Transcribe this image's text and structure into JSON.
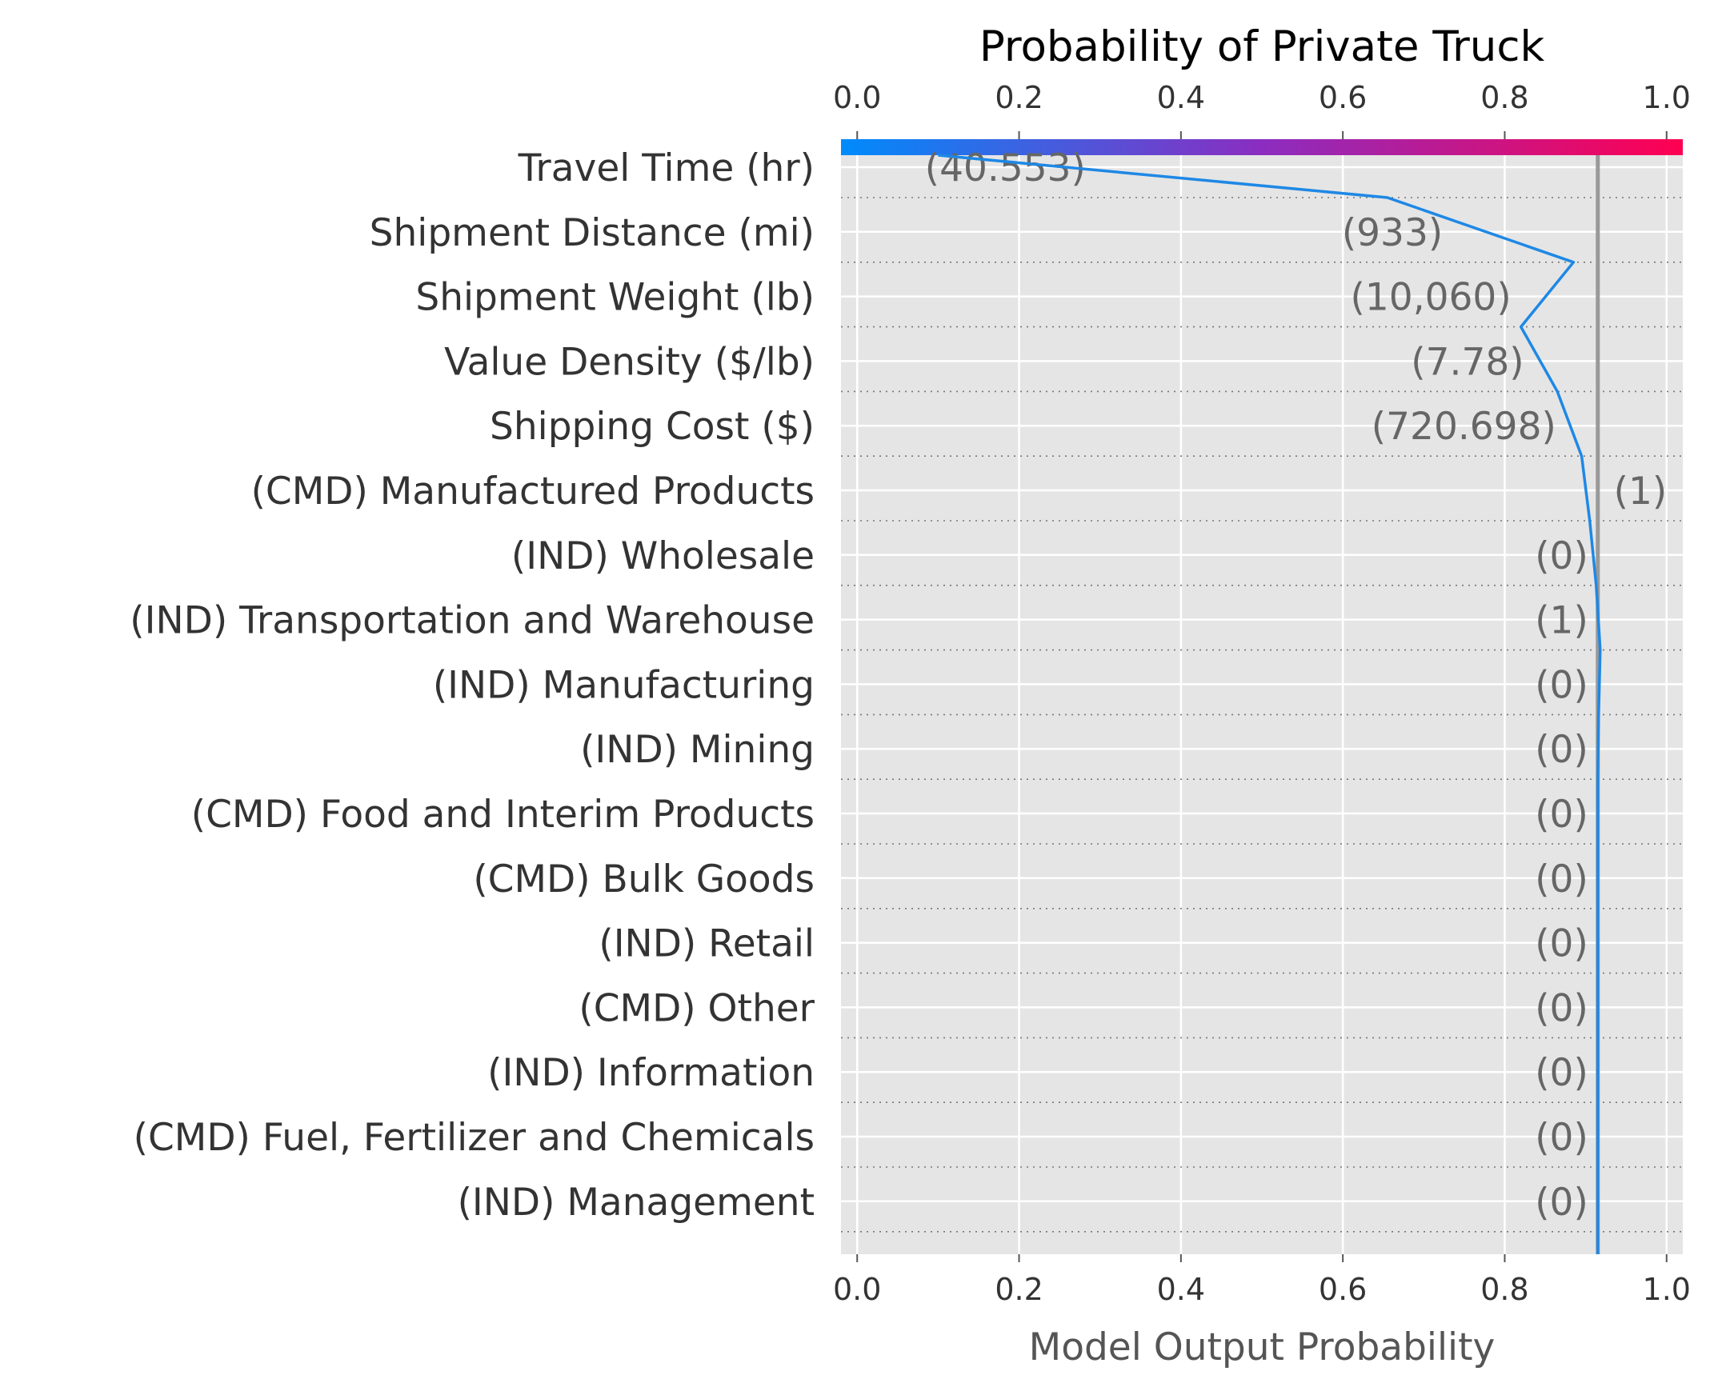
{
  "chart_data": {
    "type": "line",
    "title": "Probability of Private Truck",
    "xlabel": "Model Output Probability",
    "xlim": [
      -0.02,
      1.02
    ],
    "xticks": [
      "0.0",
      "0.2",
      "0.4",
      "0.6",
      "0.8",
      "1.0"
    ],
    "base_value": 0.1,
    "model_output": 0.915,
    "grid": true,
    "colorbar": {
      "colors": [
        "#008bfb",
        "#8b2dc0",
        "#ff0051"
      ]
    },
    "line_color": "#1e88e5",
    "features": [
      {
        "name": "Travel Time (hr)",
        "value": "(40.553)",
        "cumulative": 0.655
      },
      {
        "name": "Shipment Distance (mi)",
        "value": "(933)",
        "cumulative": 0.885
      },
      {
        "name": "Shipment Weight (lb)",
        "value": "(10,060)",
        "cumulative": 0.82
      },
      {
        "name": "Value Density ($/lb)",
        "value": "(7.78)",
        "cumulative": 0.865
      },
      {
        "name": "Shipping Cost ($)",
        "value": "(720.698)",
        "cumulative": 0.895
      },
      {
        "name": "(CMD) Manufactured Products",
        "value": "(1)",
        "cumulative": 0.905
      },
      {
        "name": "(IND) Wholesale",
        "value": "(0)",
        "cumulative": 0.913
      },
      {
        "name": "(IND) Transportation and Warehouse",
        "value": "(1)",
        "cumulative": 0.918
      },
      {
        "name": "(IND) Manufacturing",
        "value": "(0)",
        "cumulative": 0.916
      },
      {
        "name": "(IND) Mining",
        "value": "(0)",
        "cumulative": 0.915
      },
      {
        "name": "(CMD) Food and Interim Products",
        "value": "(0)",
        "cumulative": 0.915
      },
      {
        "name": "(CMD) Bulk Goods",
        "value": "(0)",
        "cumulative": 0.915
      },
      {
        "name": "(IND) Retail",
        "value": "(0)",
        "cumulative": 0.915
      },
      {
        "name": "(CMD) Other",
        "value": "(0)",
        "cumulative": 0.915
      },
      {
        "name": "(IND) Information",
        "value": "(0)",
        "cumulative": 0.915
      },
      {
        "name": "(CMD) Fuel, Fertilizer and Chemicals",
        "value": "(0)",
        "cumulative": 0.915
      },
      {
        "name": "(IND) Management",
        "value": "(0)",
        "cumulative": 0.915
      }
    ]
  }
}
